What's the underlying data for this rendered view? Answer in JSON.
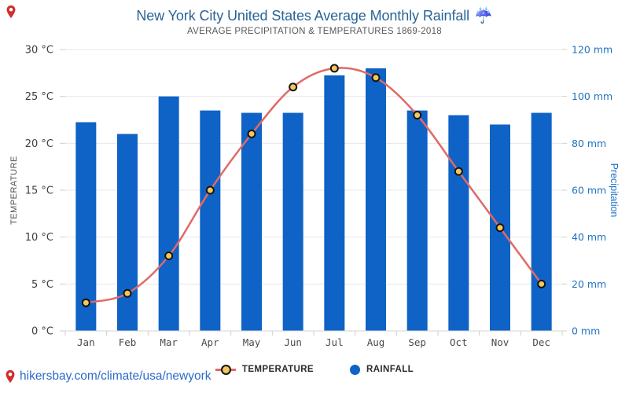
{
  "page": {
    "title": "New York City United States Average Monthly Rainfall",
    "title_icon": "☔",
    "subtitle": "AVERAGE PRECIPITATION & TEMPERATURES 1869-2018",
    "footer_link": "hikersbay.com/climate/usa/newyork"
  },
  "legend": {
    "temperature_label": "TEMPERATURE",
    "rainfall_label": "RAINFALL"
  },
  "chart_data": {
    "type": "bar",
    "subtype": "bar+line combo",
    "title": "New York City United States Average Monthly Rainfall",
    "subtitle": "AVERAGE PRECIPITATION & TEMPERATURES 1869-2018",
    "categories": [
      "Jan",
      "Feb",
      "Mar",
      "Apr",
      "May",
      "Jun",
      "Jul",
      "Aug",
      "Sep",
      "Oct",
      "Nov",
      "Dec"
    ],
    "series": [
      {
        "name": "RAINFALL",
        "type": "bar",
        "axis": "right",
        "unit": "mm",
        "values": [
          89,
          84,
          100,
          94,
          93,
          93,
          109,
          112,
          94,
          92,
          88,
          93
        ]
      },
      {
        "name": "TEMPERATURE",
        "type": "line",
        "axis": "left",
        "unit": "°C",
        "values": [
          3,
          4,
          8,
          15,
          21,
          26,
          28,
          27,
          23,
          17,
          11,
          5
        ]
      }
    ],
    "left_axis": {
      "label": "TEMPERATURE",
      "min": 0,
      "max": 30,
      "ticks": [
        "30 °C",
        "25 °C",
        "20 °C",
        "15 °C",
        "10 °C",
        "5 °C",
        "0 °C"
      ]
    },
    "right_axis": {
      "label": "Precipitation",
      "min": 0,
      "max": 120,
      "ticks": [
        "120 mm",
        "100 mm",
        "80 mm",
        "60 mm",
        "40 mm",
        "20 mm",
        "0 mm"
      ]
    },
    "grid": "horizontal",
    "legend_position": "bottom"
  },
  "colors": {
    "bar_blue": "#0F62C6",
    "line_red": "#E06A66",
    "marker_fill": "#F3C75F",
    "marker_stroke": "#141414",
    "title_blue": "#2A6496",
    "right_axis_blue": "#2173C2",
    "left_axis_text": "#3F3F3F",
    "month_text": "#4A4A4A",
    "gridline": "#E7E7E7",
    "axis_line": "#D6D6D6",
    "tick_line": "#CFCFCF",
    "pin_red": "#D12F2F",
    "link_blue": "#2E6BC8"
  }
}
